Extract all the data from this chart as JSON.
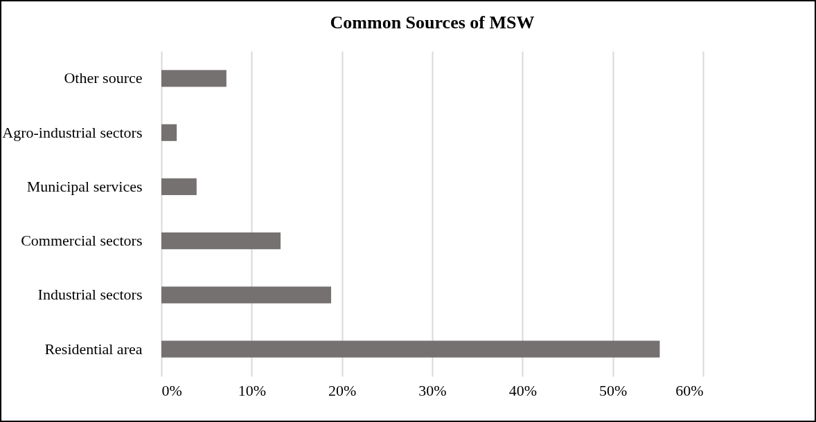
{
  "chart_data": {
    "type": "bar",
    "orientation": "horizontal",
    "title": "Common Sources of MSW",
    "categories": [
      "Other source",
      "Agro-industrial sectors",
      "Municipal services",
      "Commercial sectors",
      "Industrial sectors",
      "Residential area"
    ],
    "values": [
      7.2,
      1.7,
      3.9,
      13.2,
      18.8,
      55.2
    ],
    "color": "#767171",
    "xlim": [
      0,
      60
    ],
    "xticks": [
      {
        "value": 0,
        "label": "0%"
      },
      {
        "value": 10,
        "label": "10%"
      },
      {
        "value": 20,
        "label": "20%"
      },
      {
        "value": 30,
        "label": "30%"
      },
      {
        "value": 40,
        "label": "40%"
      },
      {
        "value": 50,
        "label": "50%"
      },
      {
        "value": 60,
        "label": "60%"
      }
    ],
    "grid": "x"
  }
}
